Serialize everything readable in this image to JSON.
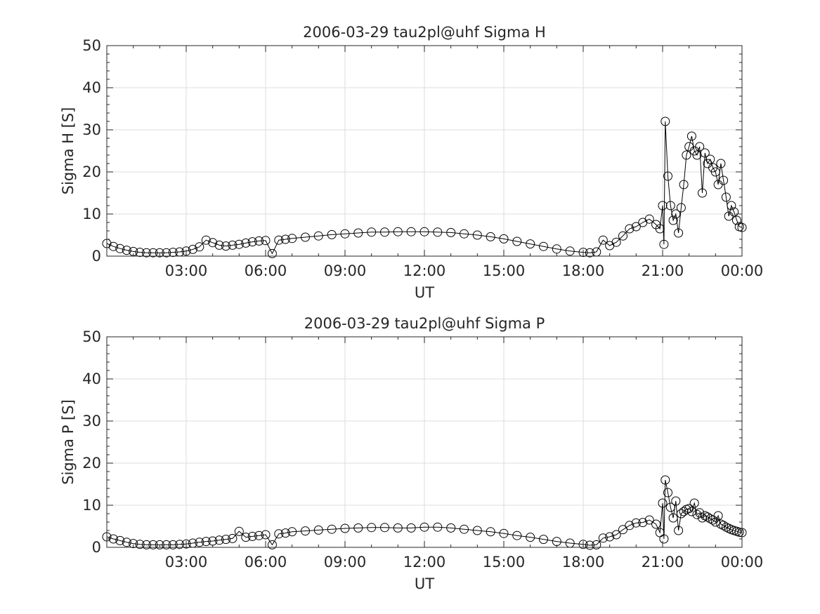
{
  "chart_data": [
    {
      "type": "line",
      "title": "2006-03-29  tau2pl@uhf Sigma H",
      "xlabel": "UT",
      "ylabel": "Sigma H [S]",
      "xlim": [
        0,
        24
      ],
      "ylim": [
        0,
        50
      ],
      "xticks": [
        3,
        6,
        9,
        12,
        15,
        18,
        21,
        24
      ],
      "xtick_labels": [
        "03:00",
        "06:00",
        "09:00",
        "12:00",
        "15:00",
        "18:00",
        "21:00",
        "00:00"
      ],
      "yticks": [
        0,
        10,
        20,
        30,
        40,
        50
      ],
      "ytick_labels": [
        "0",
        "10",
        "20",
        "30",
        "40",
        "50"
      ],
      "grid": true,
      "marker": "open-circle",
      "line_color": "#000000",
      "series": [
        {
          "x": [
            0.0,
            0.25,
            0.5,
            0.75,
            1.0,
            1.25,
            1.5,
            1.75,
            2.0,
            2.25,
            2.5,
            2.75,
            3.0,
            3.25,
            3.5,
            3.75,
            4.0,
            4.25,
            4.5,
            4.75,
            5.0,
            5.25,
            5.5,
            5.75,
            6.0,
            6.25,
            6.5,
            6.75,
            7.0,
            7.5,
            8.0,
            8.5,
            9.0,
            9.5,
            10.0,
            10.5,
            11.0,
            11.5,
            12.0,
            12.5,
            13.0,
            13.5,
            14.0,
            14.5,
            15.0,
            15.5,
            16.0,
            16.5,
            17.0,
            17.5,
            18.0,
            18.25,
            18.5,
            18.75,
            19.0,
            19.25,
            19.5,
            19.75,
            20.0,
            20.25,
            20.5,
            20.75,
            20.9,
            21.0,
            21.05,
            21.1,
            21.2,
            21.3,
            21.4,
            21.5,
            21.6,
            21.7,
            21.8,
            21.9,
            22.0,
            22.1,
            22.2,
            22.3,
            22.4,
            22.5,
            22.6,
            22.7,
            22.8,
            22.9,
            23.0,
            23.1,
            23.2,
            23.3,
            23.4,
            23.5,
            23.6,
            23.7,
            23.8,
            23.9,
            24.0
          ],
          "y": [
            3.0,
            2.3,
            1.8,
            1.4,
            1.1,
            0.9,
            0.8,
            0.8,
            0.8,
            0.8,
            0.9,
            1.0,
            1.2,
            1.6,
            2.2,
            3.8,
            3.2,
            2.6,
            2.4,
            2.6,
            2.8,
            3.1,
            3.4,
            3.6,
            3.7,
            0.6,
            3.8,
            4.0,
            4.2,
            4.5,
            4.8,
            5.1,
            5.3,
            5.5,
            5.7,
            5.7,
            5.8,
            5.8,
            5.8,
            5.7,
            5.6,
            5.3,
            5.0,
            4.6,
            4.1,
            3.5,
            2.9,
            2.3,
            1.7,
            1.2,
            0.9,
            0.8,
            1.0,
            3.8,
            2.5,
            3.3,
            4.8,
            6.5,
            7.0,
            8.0,
            8.8,
            7.5,
            6.5,
            12.0,
            2.8,
            32.0,
            19.0,
            12.0,
            8.5,
            10.0,
            5.5,
            11.5,
            17.0,
            24.0,
            26.0,
            28.5,
            25.0,
            24.0,
            26.0,
            15.0,
            24.5,
            22.0,
            23.0,
            21.0,
            20.0,
            17.0,
            22.0,
            18.0,
            14.0,
            9.5,
            12.0,
            10.5,
            8.5,
            7.0,
            6.8
          ]
        }
      ]
    },
    {
      "type": "line",
      "title": "2006-03-29  tau2pl@uhf Sigma P",
      "xlabel": "UT",
      "ylabel": "Sigma P [S]",
      "xlim": [
        0,
        24
      ],
      "ylim": [
        0,
        50
      ],
      "xticks": [
        3,
        6,
        9,
        12,
        15,
        18,
        21,
        24
      ],
      "xtick_labels": [
        "03:00",
        "06:00",
        "09:00",
        "12:00",
        "15:00",
        "18:00",
        "21:00",
        "00:00"
      ],
      "yticks": [
        0,
        10,
        20,
        30,
        40,
        50
      ],
      "ytick_labels": [
        "0",
        "10",
        "20",
        "30",
        "40",
        "50"
      ],
      "grid": true,
      "marker": "open-circle",
      "line_color": "#000000",
      "series": [
        {
          "x": [
            0.0,
            0.25,
            0.5,
            0.75,
            1.0,
            1.25,
            1.5,
            1.75,
            2.0,
            2.25,
            2.5,
            2.75,
            3.0,
            3.25,
            3.5,
            3.75,
            4.0,
            4.25,
            4.5,
            4.75,
            5.0,
            5.25,
            5.5,
            5.75,
            6.0,
            6.25,
            6.5,
            6.75,
            7.0,
            7.5,
            8.0,
            8.5,
            9.0,
            9.5,
            10.0,
            10.5,
            11.0,
            11.5,
            12.0,
            12.5,
            13.0,
            13.5,
            14.0,
            14.5,
            15.0,
            15.5,
            16.0,
            16.5,
            17.0,
            17.5,
            18.0,
            18.25,
            18.5,
            18.75,
            19.0,
            19.25,
            19.5,
            19.75,
            20.0,
            20.25,
            20.5,
            20.75,
            20.9,
            21.0,
            21.05,
            21.1,
            21.2,
            21.3,
            21.4,
            21.5,
            21.6,
            21.7,
            21.8,
            21.9,
            22.0,
            22.1,
            22.2,
            22.3,
            22.4,
            22.5,
            22.6,
            22.7,
            22.8,
            22.9,
            23.0,
            23.1,
            23.2,
            23.3,
            23.4,
            23.5,
            23.6,
            23.7,
            23.8,
            23.9,
            24.0
          ],
          "y": [
            2.5,
            2.0,
            1.6,
            1.2,
            0.9,
            0.7,
            0.6,
            0.6,
            0.6,
            0.6,
            0.6,
            0.7,
            0.8,
            1.0,
            1.2,
            1.4,
            1.5,
            1.7,
            1.9,
            2.1,
            3.8,
            2.4,
            2.6,
            2.8,
            3.0,
            0.6,
            3.2,
            3.4,
            3.7,
            3.9,
            4.1,
            4.3,
            4.5,
            4.6,
            4.7,
            4.7,
            4.6,
            4.6,
            4.8,
            4.8,
            4.6,
            4.3,
            4.0,
            3.7,
            3.3,
            2.8,
            2.4,
            1.9,
            1.4,
            1.0,
            0.7,
            0.5,
            0.6,
            2.2,
            2.5,
            3.0,
            4.2,
            5.2,
            5.8,
            5.9,
            6.5,
            5.5,
            3.5,
            10.5,
            2.0,
            16.0,
            13.0,
            9.5,
            7.0,
            11.0,
            4.0,
            8.0,
            8.5,
            9.0,
            9.2,
            8.5,
            10.5,
            7.8,
            8.2,
            7.0,
            7.5,
            7.2,
            6.8,
            6.5,
            6.0,
            7.5,
            5.5,
            5.2,
            4.8,
            4.5,
            4.2,
            4.0,
            3.8,
            3.6,
            3.5
          ]
        }
      ]
    }
  ]
}
